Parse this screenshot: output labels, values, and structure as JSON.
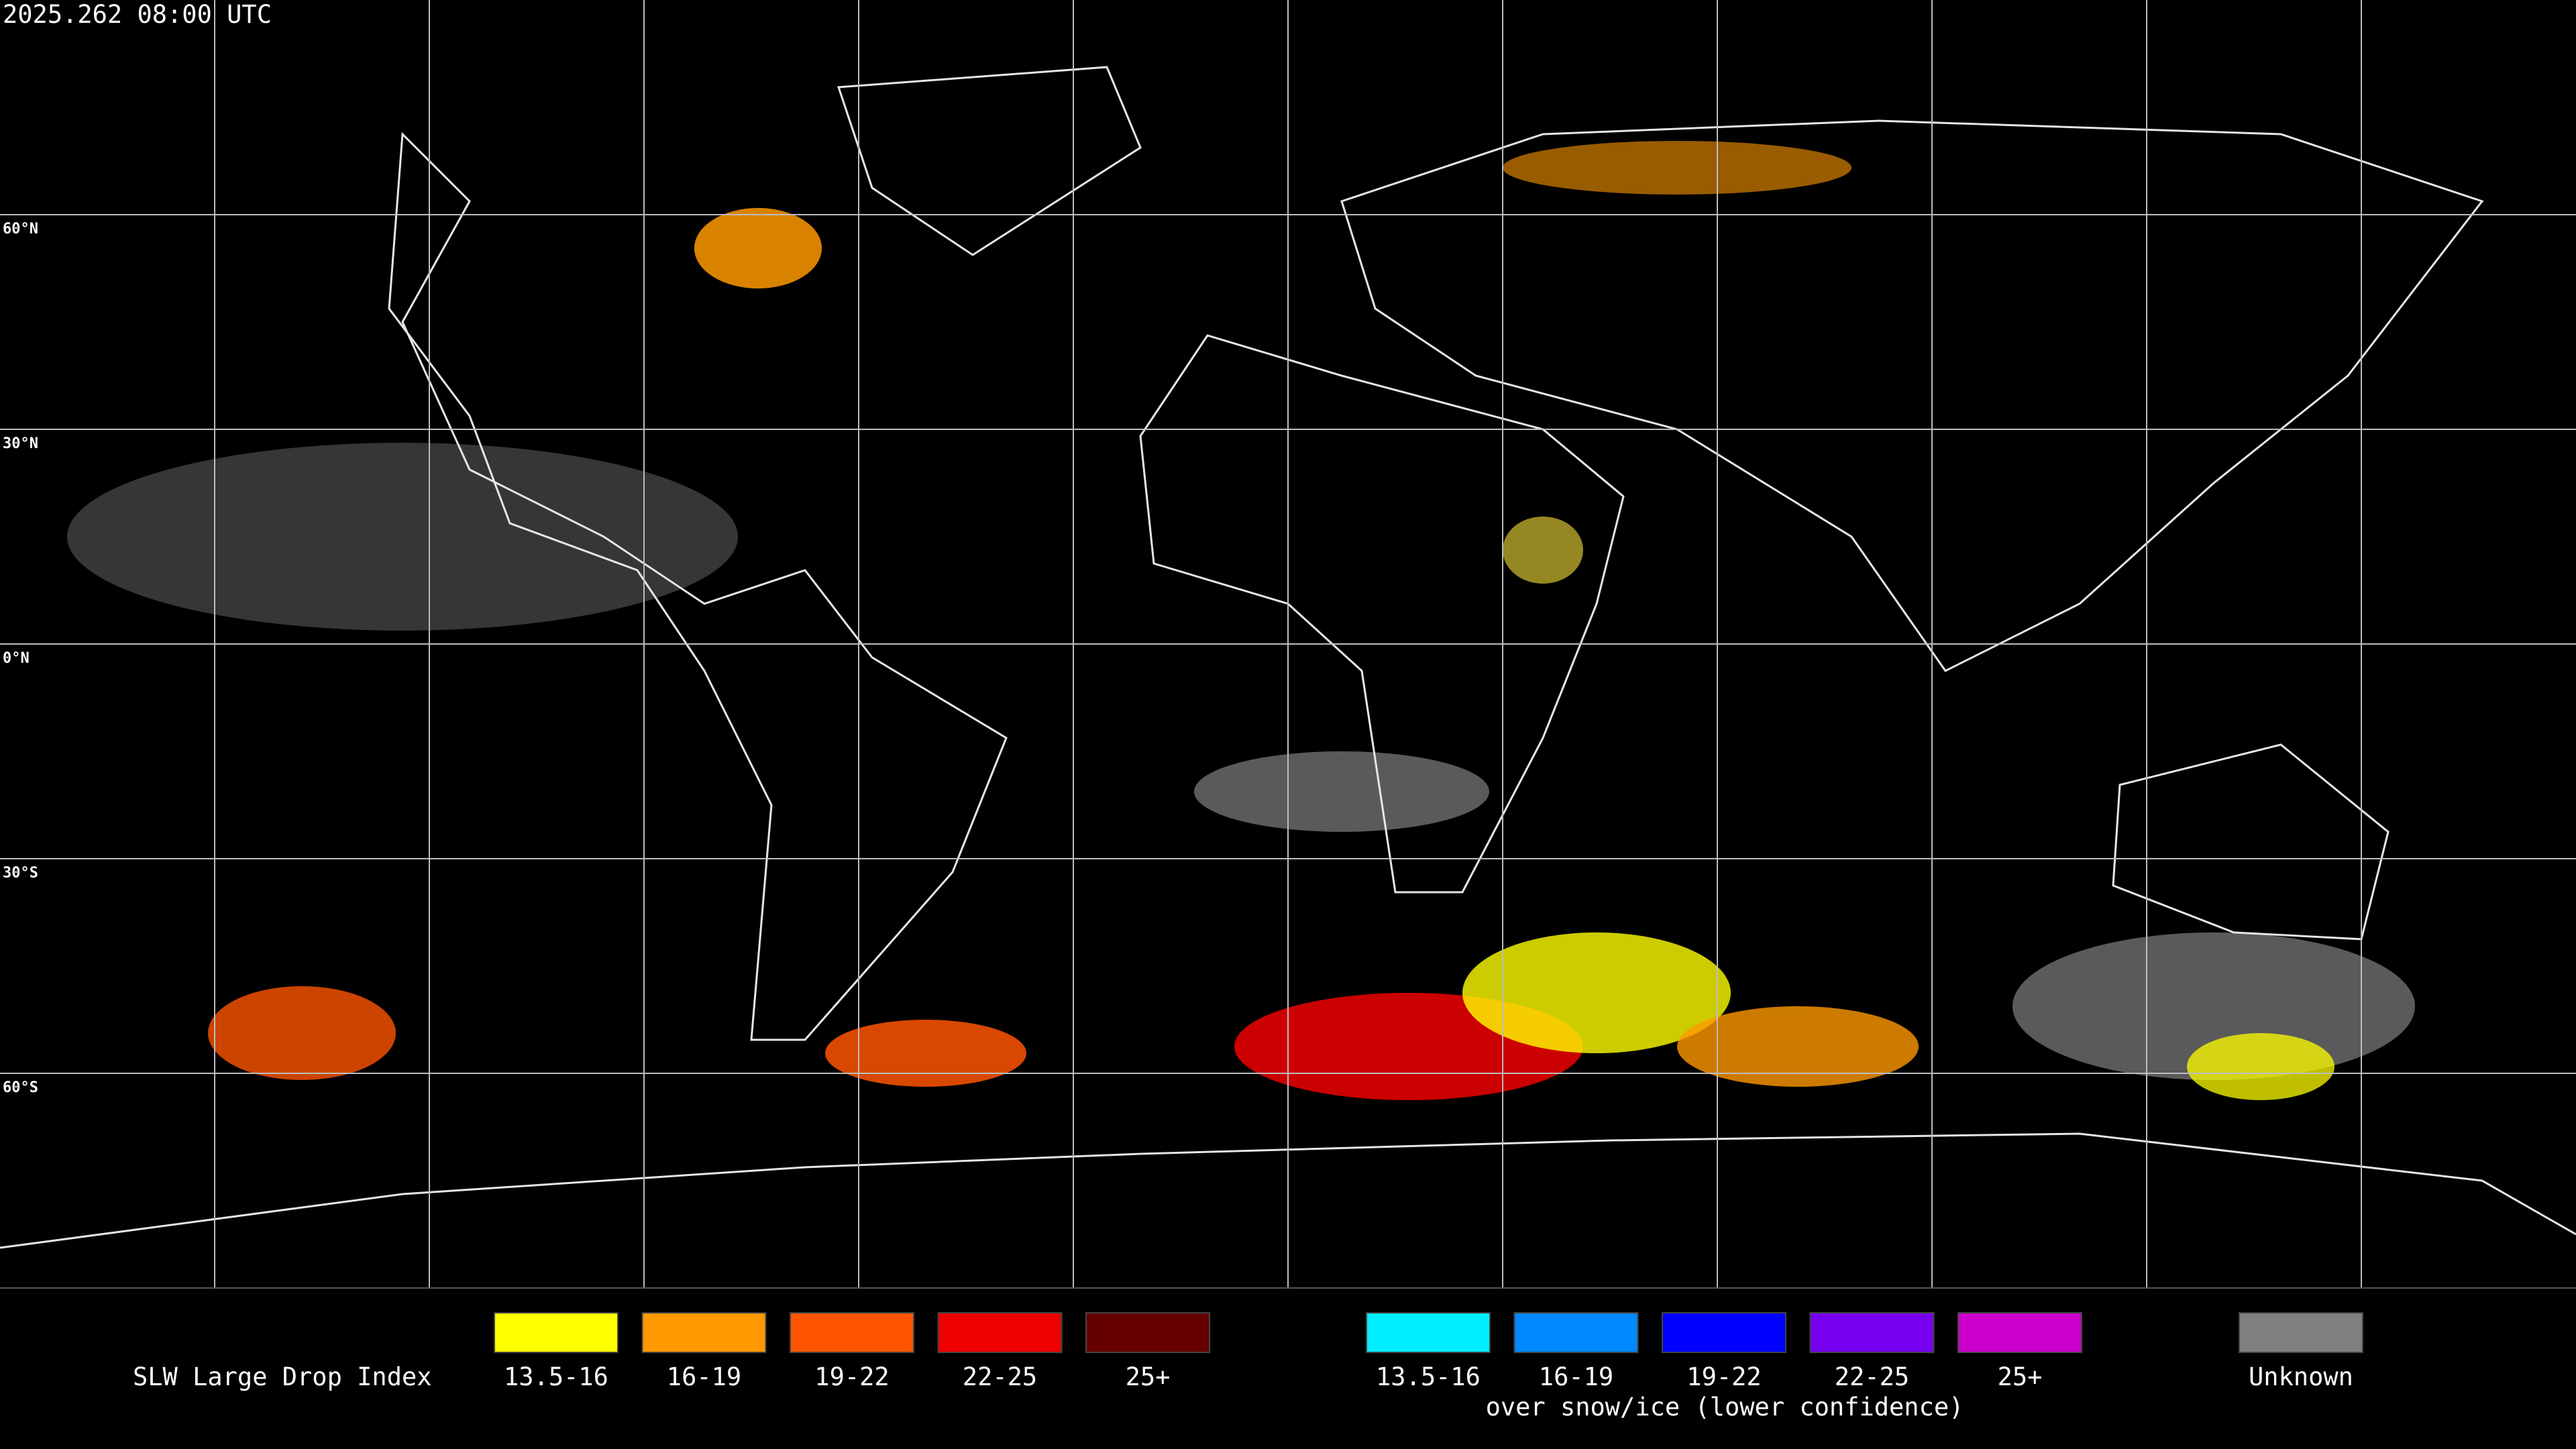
{
  "timestamp": "2025.262 08:00 UTC",
  "latitude_labels": [
    "60°N",
    "30°N",
    "0°N",
    "30°S",
    "60°S"
  ],
  "legend": {
    "title": "SLW Large Drop Index",
    "items": [
      {
        "label": "13.5-16",
        "color": "#ffff00"
      },
      {
        "label": "16-19",
        "color": "#ff9900"
      },
      {
        "label": "19-22",
        "color": "#ff5500"
      },
      {
        "label": "22-25",
        "color": "#ee0000"
      },
      {
        "label": "25+",
        "color": "#660000"
      }
    ],
    "snow_items": [
      {
        "label": "13.5-16",
        "color": "#00eeff"
      },
      {
        "label": "16-19",
        "color": "#0088ff"
      },
      {
        "label": "19-22",
        "color": "#0000ff"
      },
      {
        "label": "22-25",
        "color": "#7700ee"
      },
      {
        "label": "25+",
        "color": "#cc00cc"
      }
    ],
    "snow_note": "over snow/ice (lower confidence)",
    "unknown": {
      "label": "Unknown",
      "color": "#808080"
    }
  }
}
